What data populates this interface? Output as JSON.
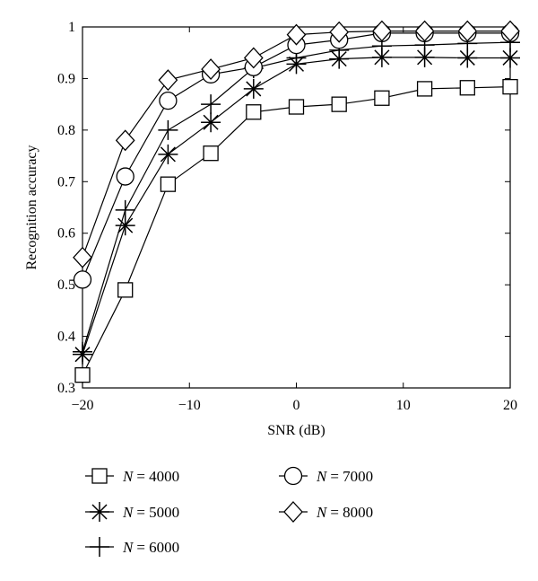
{
  "chart_data": {
    "type": "line",
    "title": "",
    "xlabel": "SNR (dB)",
    "ylabel": "Recognition accuracy",
    "xlim": [
      -20,
      20
    ],
    "ylim": [
      0.3,
      1.0
    ],
    "xticks": [
      -20,
      -10,
      0,
      10,
      20
    ],
    "xtick_labels": [
      "−20",
      "−10",
      "0",
      "10",
      "20"
    ],
    "yticks": [
      0.3,
      0.4,
      0.5,
      0.6,
      0.7,
      0.8,
      0.9,
      1.0
    ],
    "ytick_labels": [
      "0.3",
      "0.4",
      "0.5",
      "0.6",
      "0.7",
      "0.8",
      "0.9",
      "1"
    ],
    "grid": false,
    "legend_position": "bottom",
    "x": [
      -20,
      -16,
      -12,
      -8,
      -4,
      0,
      4,
      8,
      12,
      16,
      20
    ],
    "series": [
      {
        "name": "N = 4000",
        "label_var": "N",
        "label_value": "= 4000",
        "marker": "square",
        "values": [
          0.325,
          0.49,
          0.695,
          0.755,
          0.835,
          0.845,
          0.85,
          0.862,
          0.88,
          0.882,
          0.884
        ]
      },
      {
        "name": "N = 5000",
        "label_var": "N",
        "label_value": "= 5000",
        "marker": "star",
        "values": [
          0.365,
          0.615,
          0.753,
          0.815,
          0.88,
          0.928,
          0.938,
          0.941,
          0.941,
          0.94,
          0.94
        ]
      },
      {
        "name": "N = 6000",
        "label_var": "N",
        "label_value": "= 6000",
        "marker": "plus",
        "values": [
          0.37,
          0.645,
          0.8,
          0.85,
          0.92,
          0.94,
          0.955,
          0.963,
          0.965,
          0.968,
          0.97
        ]
      },
      {
        "name": "N = 7000",
        "label_var": "N",
        "label_value": "= 7000",
        "marker": "circle",
        "values": [
          0.51,
          0.71,
          0.857,
          0.908,
          0.922,
          0.965,
          0.975,
          0.988,
          0.988,
          0.988,
          0.988
        ]
      },
      {
        "name": "N = 8000",
        "label_var": "N",
        "label_value": "= 8000",
        "marker": "diamond",
        "values": [
          0.553,
          0.78,
          0.897,
          0.918,
          0.94,
          0.985,
          0.99,
          0.992,
          0.992,
          0.992,
          0.992
        ]
      }
    ]
  }
}
